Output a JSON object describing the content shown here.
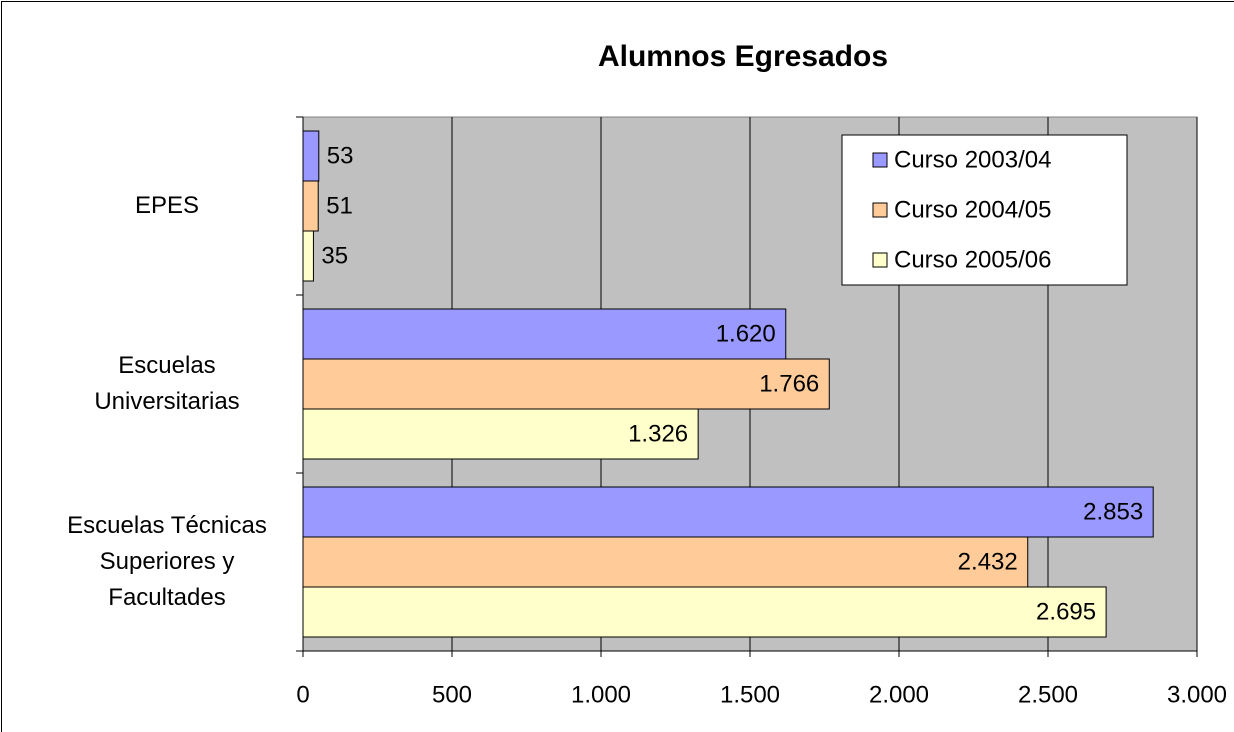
{
  "chart_data": {
    "type": "hbar",
    "title": "Alumnos Egresados",
    "categories": [
      "EPES",
      "Escuelas Universitarias",
      "Escuelas Técnicas Superiores y Facultades"
    ],
    "series": [
      {
        "name": "Curso 2003/04",
        "color": "#9999ff",
        "values": [
          53,
          1620,
          2853
        ],
        "value_labels": [
          "53",
          "1.620",
          "2.853"
        ]
      },
      {
        "name": "Curso 2004/05",
        "color": "#ffcc99",
        "values": [
          51,
          1766,
          2432
        ],
        "value_labels": [
          "51",
          "1.766",
          "2.432"
        ]
      },
      {
        "name": "Curso 2005/06",
        "color": "#ffffcc",
        "values": [
          35,
          1326,
          2695
        ],
        "value_labels": [
          "35",
          "1.326",
          "2.695"
        ]
      }
    ],
    "xlim": [
      0,
      3000
    ],
    "xticks": [
      0,
      500,
      {
        "value": 1000,
        "label": "1.000"
      },
      {
        "value": 1500,
        "label": "1.500"
      },
      {
        "value": 2000,
        "label": "2.000"
      },
      {
        "value": 2500,
        "label": "2.500"
      },
      {
        "value": 3000,
        "label": "3.000"
      }
    ],
    "grid": true,
    "legend": "top-right",
    "plot_background": "#c0c0c0"
  }
}
